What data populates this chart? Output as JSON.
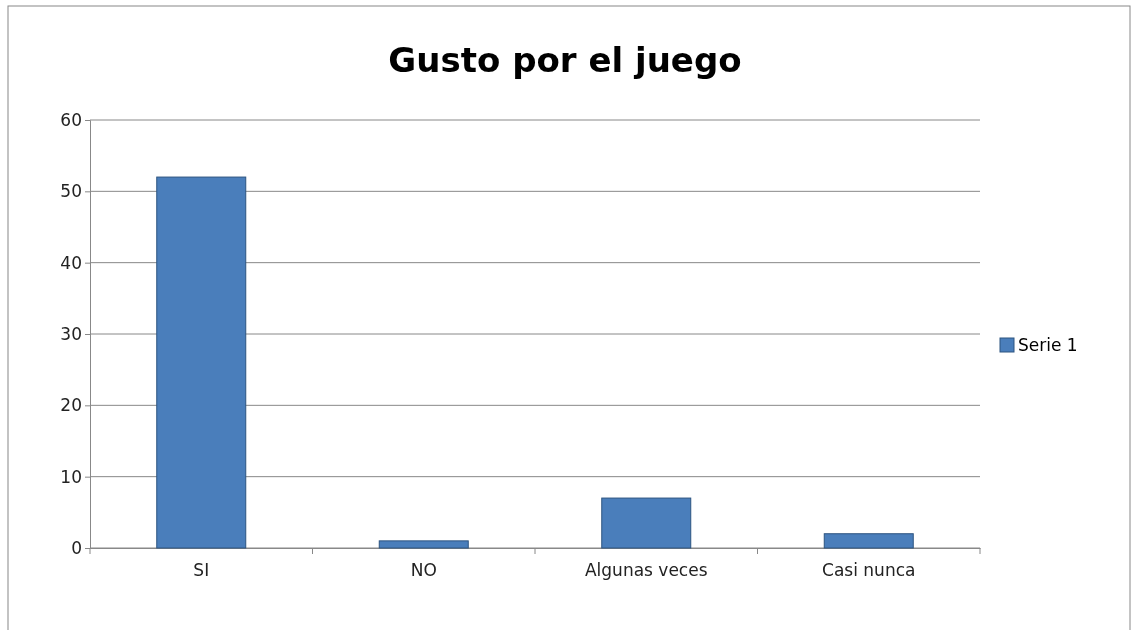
{
  "chart_data": {
    "type": "bar",
    "title": "Gusto por el juego",
    "categories": [
      "SI",
      "NO",
      "Algunas veces",
      "Casi nunca"
    ],
    "series": [
      {
        "name": "Serie 1",
        "color": "#4a7ebb",
        "values": [
          52,
          1,
          7,
          2
        ]
      }
    ],
    "ylim": [
      0,
      60
    ],
    "yticks": [
      0,
      10,
      20,
      30,
      40,
      50,
      60
    ],
    "grid": "y",
    "legend": "right"
  }
}
